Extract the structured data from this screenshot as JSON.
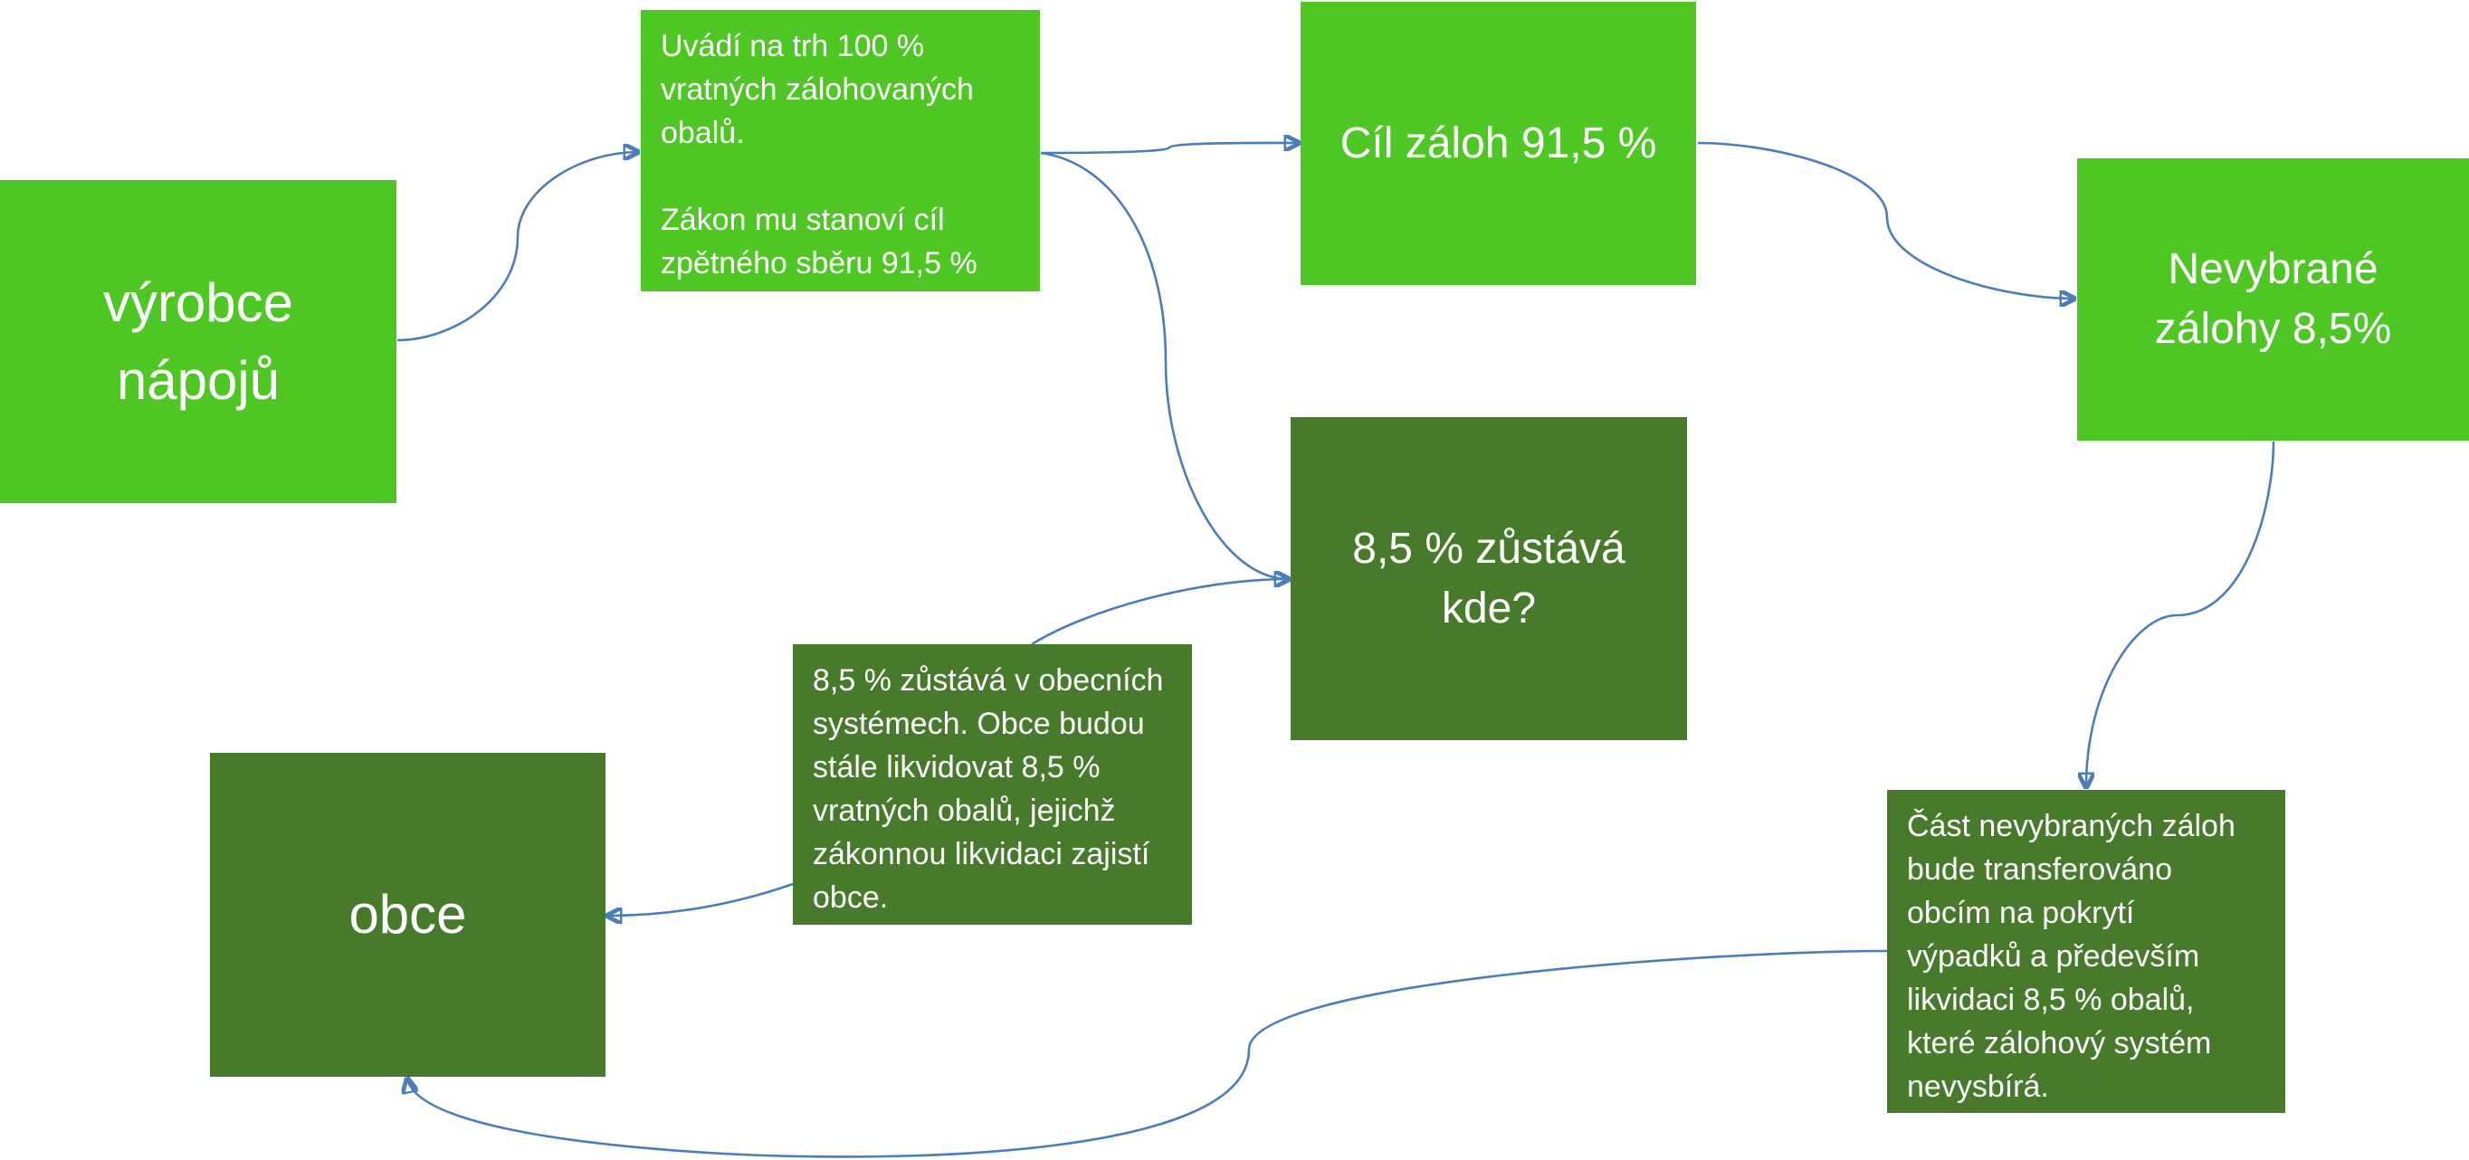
{
  "colors": {
    "box_light": "#4ec623",
    "box_dark": "#477a2a",
    "text": "#ffffff",
    "connector": "#4a7ebb"
  },
  "nodes": {
    "producer": {
      "lines": [
        "výrobce",
        "nápojů"
      ]
    },
    "market_info": {
      "paragraph1": [
        "Uvádí na trh 100 %",
        "vratných zálohovaných",
        "obalů."
      ],
      "paragraph2": [
        "Zákon mu stanoví cíl",
        "zpětného sběru 91,5 %"
      ]
    },
    "deposit_target": {
      "lines": [
        "Cíl záloh 91,5 %"
      ]
    },
    "unclaimed_deposits": {
      "lines": [
        "Nevybrané",
        "zálohy 8,5%"
      ]
    },
    "remainder_question": {
      "lines": [
        "8,5 % zůstává",
        "kde?"
      ]
    },
    "municipal_systems": {
      "lines": [
        "8,5 % zůstává v obecních",
        "systémech. Obce budou",
        "stále likvidovat 8,5 %",
        "vratných obalů, jejichž",
        "zákonnou likvidaci zajistí",
        "obce."
      ]
    },
    "municipalities": {
      "lines": [
        "obce"
      ]
    },
    "transfer": {
      "lines": [
        "Část nevybraných záloh",
        "bude transferováno",
        "obcím na pokrytí",
        "výpadků a především",
        "likvidaci 8,5 % obalů,",
        "které zálohový systém",
        "nevysbírá."
      ]
    }
  },
  "connections": [
    {
      "from": "producer",
      "to": "market_info"
    },
    {
      "from": "market_info",
      "to": "deposit_target"
    },
    {
      "from": "market_info",
      "to": "remainder_question"
    },
    {
      "from": "deposit_target",
      "to": "unclaimed_deposits"
    },
    {
      "from": "unclaimed_deposits",
      "to": "transfer"
    },
    {
      "from": "municipal_systems",
      "to": "remainder_question"
    },
    {
      "from": "municipal_systems",
      "to": "municipalities"
    },
    {
      "from": "transfer",
      "to": "municipalities"
    }
  ]
}
